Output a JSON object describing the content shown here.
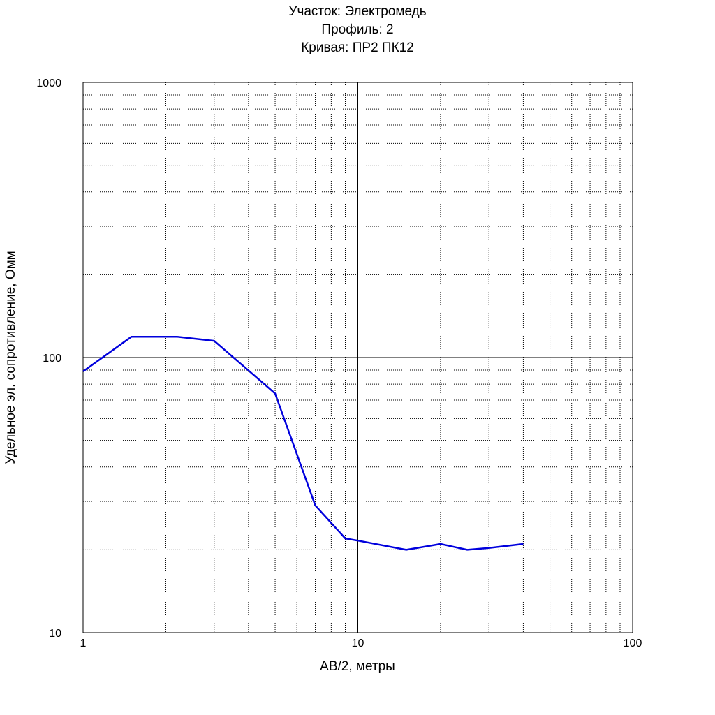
{
  "chart_data": {
    "type": "line",
    "title_lines": [
      "Участок: Электромедь",
      "Профиль: 2",
      "Кривая: ПР2 ПК12"
    ],
    "xlabel": "AB/2, метры",
    "ylabel": "Удельное эл. сопротивление, Омм",
    "x_scale": "log",
    "y_scale": "log",
    "xlim": [
      1,
      100
    ],
    "ylim": [
      10,
      1000
    ],
    "x_ticks": [
      "1",
      "10",
      "100"
    ],
    "y_ticks": [
      "10",
      "100",
      "1000"
    ],
    "grid": true,
    "series": [
      {
        "color": "#0000dd",
        "x": [
          1,
          1.5,
          2.2,
          3,
          5,
          7,
          9,
          10,
          15,
          20,
          25,
          30,
          40
        ],
        "y": [
          89,
          119,
          119,
          115,
          74,
          29,
          22,
          21.6,
          20,
          21,
          20,
          20.3,
          21
        ]
      }
    ]
  }
}
